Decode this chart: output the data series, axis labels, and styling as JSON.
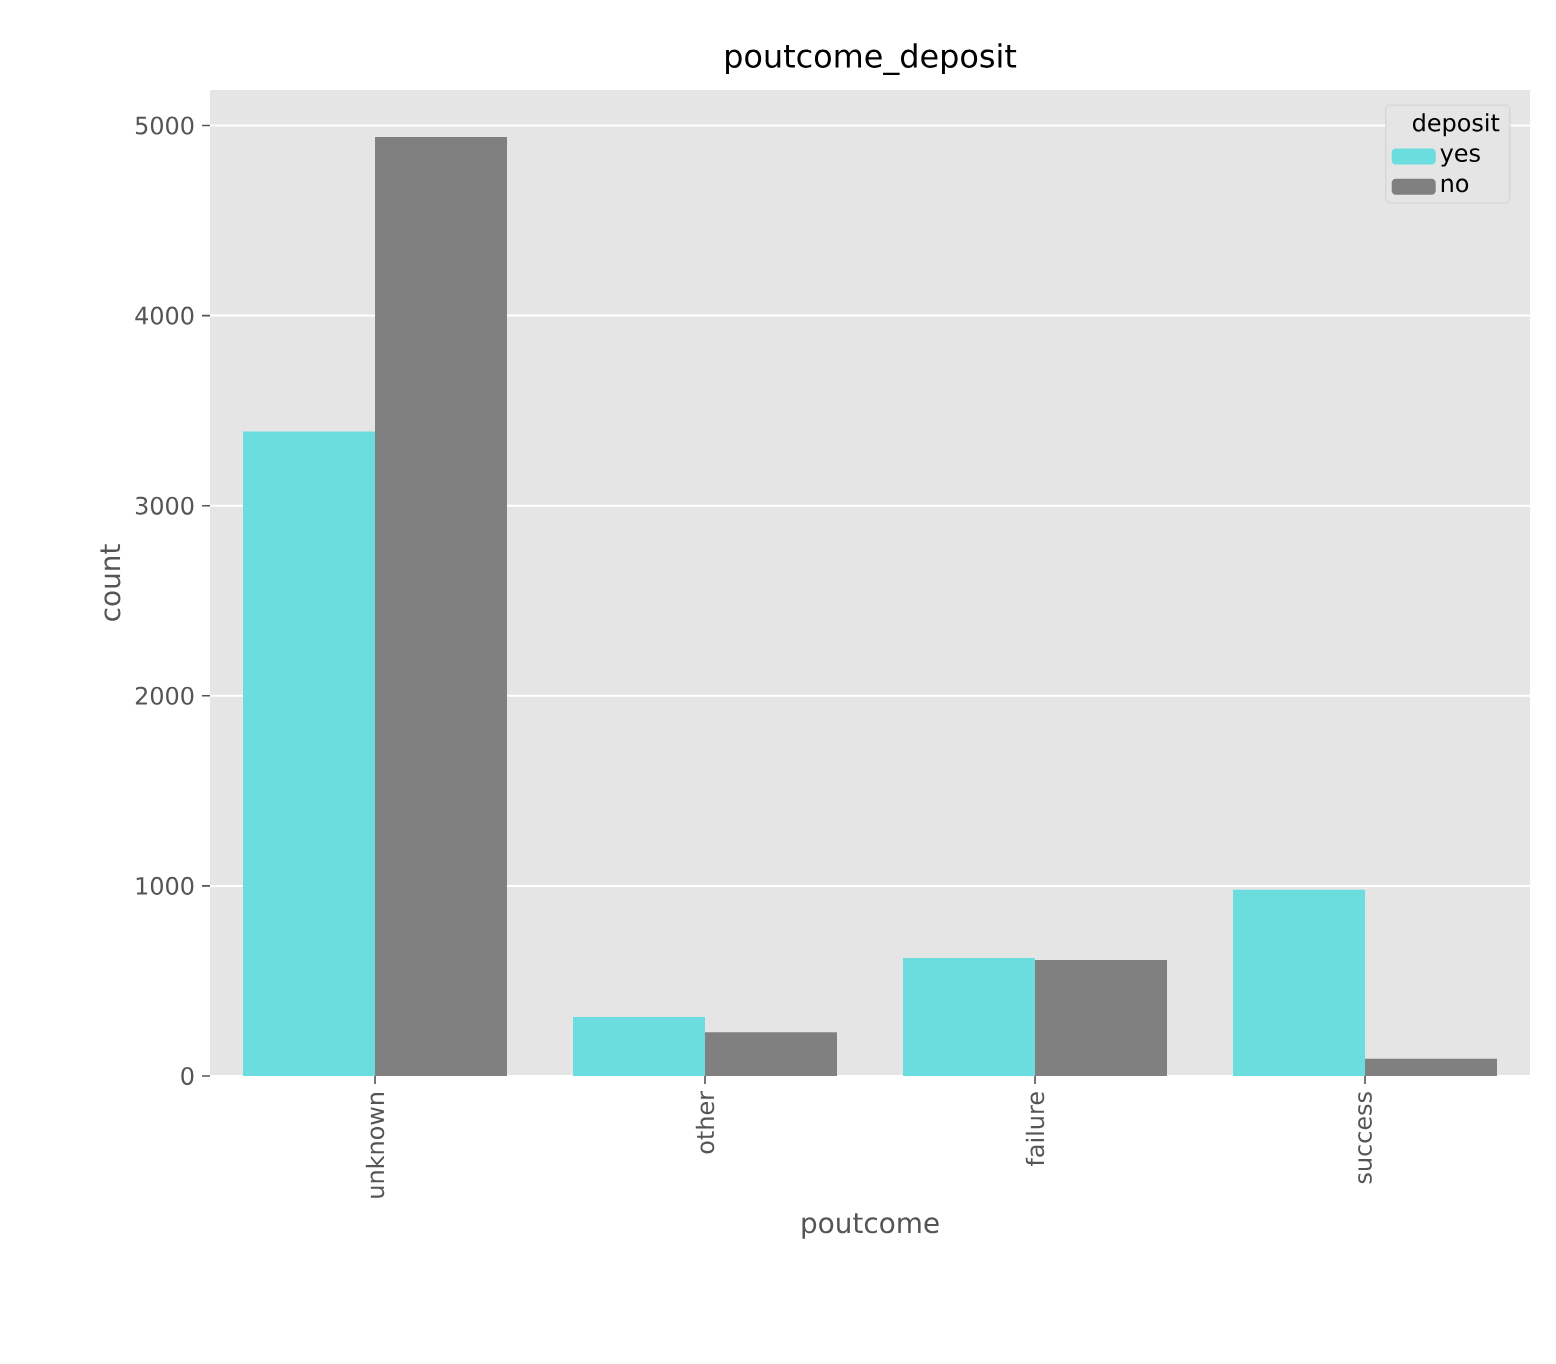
{
  "chart_data": {
    "type": "bar",
    "title": "poutcome_deposit",
    "xlabel": "poutcome",
    "ylabel": "count",
    "categories": [
      "unknown",
      "other",
      "failure",
      "success"
    ],
    "series": [
      {
        "name": "yes",
        "color": "#6bdddf",
        "values": [
          3390,
          310,
          620,
          980
        ]
      },
      {
        "name": "no",
        "color": "#808080",
        "values": [
          4940,
          230,
          610,
          90
        ]
      }
    ],
    "legend_title": "deposit",
    "legend": "top right",
    "ylim": [
      0,
      5187
    ],
    "yticks": [
      0,
      1000,
      2000,
      3000,
      4000,
      5000
    ],
    "grid": "y"
  }
}
